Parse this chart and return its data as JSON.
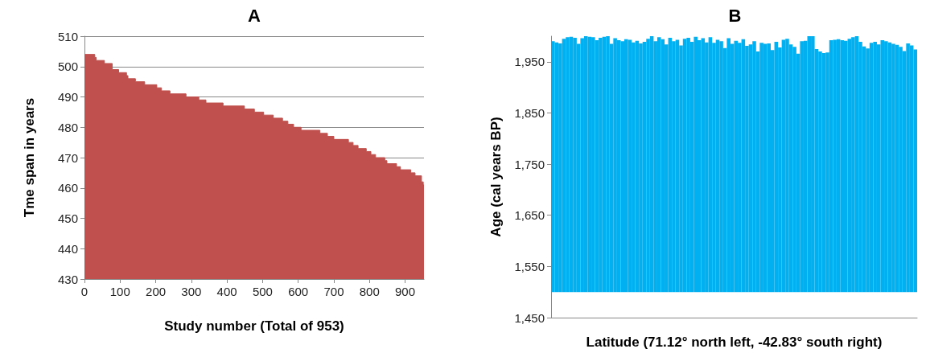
{
  "chart_data": [
    {
      "type": "area",
      "title": "A",
      "xlabel": "Study number (Total of 953)",
      "ylabel": "Tme span in years",
      "color": "#c0504d",
      "x": [
        0,
        29,
        29,
        33,
        33,
        56,
        56,
        78,
        78,
        96,
        96,
        118,
        118,
        122,
        122,
        143,
        143,
        169,
        169,
        203,
        203,
        216,
        216,
        240,
        240,
        285,
        285,
        321,
        321,
        341,
        341,
        389,
        389,
        449,
        449,
        477,
        477,
        503,
        503,
        530,
        530,
        556,
        556,
        571,
        571,
        587,
        587,
        608,
        608,
        661,
        661,
        682,
        682,
        700,
        700,
        741,
        741,
        754,
        754,
        768,
        768,
        791,
        791,
        804,
        804,
        817,
        817,
        843,
        843,
        849,
        849,
        876,
        876,
        887,
        887,
        916,
        916,
        928,
        928,
        946,
        946,
        951,
        951,
        953
      ],
      "values": [
        504,
        504,
        503,
        503,
        502,
        502,
        501,
        501,
        499,
        499,
        498,
        498,
        497,
        497,
        496,
        496,
        495,
        495,
        494,
        494,
        493,
        493,
        492,
        492,
        491,
        491,
        490,
        490,
        489,
        489,
        488,
        488,
        487,
        487,
        486,
        486,
        485,
        485,
        484,
        484,
        483,
        483,
        482,
        482,
        481,
        481,
        480,
        480,
        479,
        479,
        478,
        478,
        477,
        477,
        476,
        476,
        475,
        475,
        474,
        474,
        473,
        473,
        472,
        472,
        471,
        471,
        470,
        470,
        469,
        469,
        468,
        468,
        467,
        467,
        466,
        466,
        465,
        465,
        464,
        464,
        462,
        462,
        461,
        461
      ],
      "xlim": [
        0,
        953
      ],
      "xticks": [
        0,
        100,
        200,
        300,
        400,
        500,
        600,
        700,
        800,
        900
      ],
      "ylim": [
        430,
        510
      ],
      "yticks": [
        430,
        440,
        450,
        460,
        470,
        480,
        490,
        500,
        510
      ],
      "grid": "y"
    },
    {
      "type": "bar",
      "title": "B",
      "xlabel": "Latitude (71.12° north left, -42.83° south right)",
      "ylabel": "Age (cal years BP)",
      "color": "#00b0f0",
      "categories": [
        null,
        null,
        null,
        null,
        null,
        null,
        null,
        null,
        null,
        null,
        null,
        null,
        null,
        null,
        null,
        null,
        null,
        null,
        null,
        null,
        null,
        null,
        null,
        null,
        null,
        null,
        null,
        null,
        null,
        null,
        null,
        null,
        null,
        null,
        null,
        null,
        null,
        null,
        null,
        null,
        null,
        null,
        null,
        null,
        null,
        null,
        null,
        null,
        null,
        null,
        null,
        null,
        null,
        null,
        null,
        null,
        null,
        null,
        null,
        null,
        null,
        null,
        null,
        null,
        null,
        null,
        null,
        null,
        null,
        null,
        null,
        null,
        null,
        null,
        null,
        null,
        null,
        null,
        null,
        null,
        null,
        null,
        null,
        null,
        null,
        null,
        null,
        null,
        null,
        null,
        null,
        null,
        null,
        null,
        null,
        null,
        null,
        null,
        null,
        null
      ],
      "values": [
        490,
        488,
        486,
        495,
        498,
        499,
        497,
        485,
        496,
        500,
        499,
        498,
        492,
        497,
        499,
        500,
        485,
        496,
        492,
        490,
        494,
        493,
        488,
        491,
        486,
        489,
        495,
        500,
        490,
        498,
        494,
        484,
        497,
        490,
        493,
        482,
        495,
        497,
        489,
        499,
        492,
        496,
        488,
        498,
        487,
        493,
        490,
        477,
        496,
        485,
        491,
        487,
        494,
        481,
        484,
        490,
        470,
        487,
        485,
        486,
        473,
        489,
        478,
        493,
        495,
        484,
        479,
        466,
        490,
        491,
        500,
        500,
        475,
        470,
        467,
        468,
        492,
        493,
        494,
        492,
        491,
        495,
        498,
        500,
        489,
        480,
        476,
        487,
        489,
        484,
        492,
        490,
        488,
        485,
        483,
        479,
        471,
        486,
        482,
        474
      ],
      "base": [
        1500,
        1500,
        1500,
        1500,
        1500,
        1500,
        1500,
        1500,
        1500,
        1500,
        1500,
        1500,
        1500,
        1500,
        1500,
        1500,
        1500,
        1500,
        1500,
        1500,
        1500,
        1500,
        1500,
        1500,
        1500,
        1500,
        1500,
        1500,
        1500,
        1500,
        1500,
        1500,
        1500,
        1500,
        1500,
        1500,
        1500,
        1500,
        1500,
        1500,
        1500,
        1500,
        1500,
        1500,
        1500,
        1500,
        1500,
        1500,
        1500,
        1500,
        1500,
        1500,
        1500,
        1500,
        1500,
        1500,
        1500,
        1500,
        1500,
        1500,
        1500,
        1500,
        1500,
        1500,
        1500,
        1500,
        1500,
        1500,
        1500,
        1500,
        1500,
        1500,
        1500,
        1500,
        1500,
        1500,
        1500,
        1500,
        1500,
        1500,
        1500,
        1500,
        1500,
        1500,
        1500,
        1500,
        1500,
        1500,
        1500,
        1500,
        1500,
        1500,
        1500,
        1500,
        1500,
        1500,
        1500,
        1500,
        1500,
        1500
      ],
      "ylim": [
        1450,
        2000
      ],
      "yticks": [
        {
          "value": 1450,
          "label": "1,450"
        },
        {
          "value": 1550,
          "label": "1,550"
        },
        {
          "value": 1650,
          "label": "1,650"
        },
        {
          "value": 1750,
          "label": "1,750"
        },
        {
          "value": 1850,
          "label": "1,850"
        },
        {
          "value": 1950,
          "label": "1,950"
        }
      ],
      "tick_labels": "y"
    }
  ]
}
